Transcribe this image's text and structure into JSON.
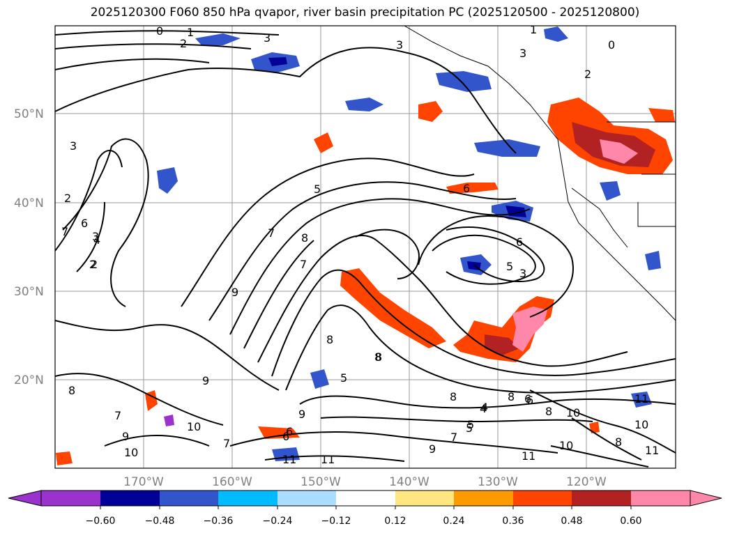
{
  "title": "2025120300 F060 850 hPa qvapor, river basin precipitation PC (2025120500 - 2025120800)",
  "lat_labels": [
    "50°N",
    "40°N",
    "30°N",
    "20°N"
  ],
  "lon_labels": [
    "170°W",
    "160°W",
    "150°W",
    "140°W",
    "130°W",
    "120°W"
  ],
  "contour_labels": [
    "0",
    "1",
    "2",
    "3",
    "3",
    "2",
    "0",
    "3",
    "1",
    "3",
    "2",
    "2",
    "3",
    "6",
    "7",
    "4",
    "2",
    "5",
    "6",
    "7",
    "8",
    "9",
    "6",
    "5",
    "3",
    "7",
    "8",
    "8",
    "5",
    "9",
    "9",
    "8",
    "7",
    "5",
    "4",
    "8",
    "6",
    "8",
    "10",
    "10",
    "11",
    "9",
    "6",
    "10",
    "7",
    "11",
    "10",
    "11",
    "11",
    "10",
    "8",
    "9",
    "11",
    "8",
    "6",
    "4",
    "5",
    "8",
    "6",
    "7"
  ],
  "colorbar": {
    "tick_labels": [
      "−0.60",
      "−0.48",
      "−0.36",
      "−0.24",
      "−0.12",
      "0.12",
      "0.24",
      "0.36",
      "0.48",
      "0.60"
    ],
    "colors": [
      "#9933cc",
      "#000099",
      "#3355cc",
      "#00bbff",
      "#aaddff",
      "#ffffff",
      "#ffe680",
      "#ff9900",
      "#ff4400",
      "#b22222",
      "#ff88aa"
    ]
  },
  "colors": {
    "neg_strong": "#000099",
    "neg_mid": "#3355cc",
    "neg_light": "#00bbff",
    "pos_light": "#ffe680",
    "pos_mid": "#ff9900",
    "pos_orange": "#ff4400",
    "pos_dark": "#b22222",
    "pos_pink": "#ff88aa"
  }
}
